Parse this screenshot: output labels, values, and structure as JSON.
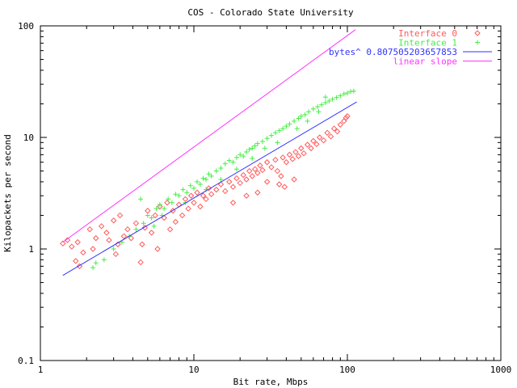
{
  "chart_data": {
    "type": "scatter",
    "title": "COS - Colorado State University",
    "xlabel": "Bit rate, Mbps",
    "ylabel": "Kilopackets per second",
    "xscale": "log",
    "yscale": "log",
    "xlim": [
      1,
      1000
    ],
    "ylim": [
      0.1,
      100
    ],
    "x_ticks": [
      1,
      10,
      100,
      1000
    ],
    "x_tick_labels": [
      "1",
      "10",
      "100",
      "1000"
    ],
    "y_ticks": [
      0.1,
      1,
      10,
      100
    ],
    "y_tick_labels": [
      "0.1",
      "1",
      "10",
      "100"
    ],
    "grid": false,
    "legend_position": "top-right",
    "series": [
      {
        "name": "Interface 0",
        "kind": "points",
        "marker": "diamond",
        "color": "#ff5a5a",
        "points": [
          [
            1.4,
            1.12
          ],
          [
            1.5,
            1.2
          ],
          [
            1.6,
            1.05
          ],
          [
            1.7,
            0.78
          ],
          [
            1.75,
            1.15
          ],
          [
            1.8,
            0.7
          ],
          [
            1.9,
            0.93
          ],
          [
            2.1,
            1.5
          ],
          [
            2.2,
            1.0
          ],
          [
            2.3,
            1.25
          ],
          [
            2.5,
            1.6
          ],
          [
            2.7,
            1.4
          ],
          [
            2.8,
            1.2
          ],
          [
            3.0,
            1.8
          ],
          [
            3.1,
            0.9
          ],
          [
            3.2,
            1.1
          ],
          [
            3.3,
            2.0
          ],
          [
            3.5,
            1.3
          ],
          [
            3.7,
            1.5
          ],
          [
            3.9,
            1.25
          ],
          [
            4.2,
            1.7
          ],
          [
            4.5,
            0.76
          ],
          [
            4.6,
            1.1
          ],
          [
            4.8,
            1.55
          ],
          [
            5.0,
            2.2
          ],
          [
            5.3,
            1.4
          ],
          [
            5.6,
            2.0
          ],
          [
            5.8,
            1.0
          ],
          [
            6.0,
            2.4
          ],
          [
            6.4,
            1.9
          ],
          [
            6.7,
            2.6
          ],
          [
            7.0,
            1.5
          ],
          [
            7.3,
            2.2
          ],
          [
            7.6,
            1.75
          ],
          [
            8.0,
            2.5
          ],
          [
            8.4,
            2.0
          ],
          [
            8.8,
            2.8
          ],
          [
            9.2,
            2.3
          ],
          [
            9.6,
            3.0
          ],
          [
            10,
            2.6
          ],
          [
            10.5,
            3.2
          ],
          [
            11,
            2.4
          ],
          [
            11.5,
            3.0
          ],
          [
            12,
            2.8
          ],
          [
            12.5,
            3.5
          ],
          [
            13,
            3.1
          ],
          [
            14,
            3.4
          ],
          [
            15,
            3.8
          ],
          [
            16,
            3.3
          ],
          [
            17,
            4.0
          ],
          [
            18,
            3.6
          ],
          [
            19,
            4.3
          ],
          [
            20,
            3.9
          ],
          [
            21,
            4.6
          ],
          [
            22,
            4.2
          ],
          [
            23,
            5.0
          ],
          [
            24,
            4.5
          ],
          [
            25,
            5.2
          ],
          [
            26,
            4.8
          ],
          [
            27,
            5.6
          ],
          [
            28,
            5.1
          ],
          [
            30,
            6.0
          ],
          [
            32,
            5.4
          ],
          [
            34,
            6.3
          ],
          [
            35,
            5.0
          ],
          [
            36,
            3.8
          ],
          [
            37,
            4.5
          ],
          [
            38,
            6.6
          ],
          [
            40,
            6.0
          ],
          [
            42,
            7.0
          ],
          [
            44,
            6.4
          ],
          [
            46,
            7.4
          ],
          [
            48,
            6.8
          ],
          [
            50,
            8.0
          ],
          [
            52,
            7.2
          ],
          [
            55,
            8.6
          ],
          [
            58,
            8.0
          ],
          [
            60,
            9.3
          ],
          [
            63,
            8.7
          ],
          [
            66,
            10.0
          ],
          [
            70,
            9.4
          ],
          [
            74,
            11.0
          ],
          [
            78,
            10.2
          ],
          [
            82,
            12.0
          ],
          [
            86,
            11.3
          ],
          [
            90,
            13.0
          ],
          [
            95,
            14.0
          ],
          [
            98,
            15.0
          ],
          [
            100,
            15.5
          ],
          [
            39,
            3.6
          ],
          [
            45,
            4.2
          ],
          [
            30,
            4.0
          ],
          [
            26,
            3.2
          ],
          [
            22,
            3.0
          ],
          [
            18,
            2.6
          ]
        ]
      },
      {
        "name": "Interface 1",
        "kind": "points",
        "marker": "plus",
        "color": "#44ee44",
        "points": [
          [
            2.2,
            0.68
          ],
          [
            2.3,
            0.75
          ],
          [
            2.6,
            0.8
          ],
          [
            3.0,
            1.0
          ],
          [
            3.4,
            1.15
          ],
          [
            3.8,
            1.3
          ],
          [
            4.2,
            1.5
          ],
          [
            4.5,
            2.8
          ],
          [
            4.7,
            1.7
          ],
          [
            5.0,
            2.0
          ],
          [
            5.3,
            1.9
          ],
          [
            5.7,
            2.3
          ],
          [
            6.0,
            2.5
          ],
          [
            6.4,
            2.3
          ],
          [
            6.8,
            2.8
          ],
          [
            7.2,
            2.6
          ],
          [
            7.6,
            3.1
          ],
          [
            8.0,
            3.0
          ],
          [
            8.5,
            3.4
          ],
          [
            9.0,
            3.2
          ],
          [
            9.5,
            3.7
          ],
          [
            10,
            3.5
          ],
          [
            10.5,
            4.0
          ],
          [
            11,
            3.8
          ],
          [
            11.5,
            4.3
          ],
          [
            12,
            4.2
          ],
          [
            12.5,
            4.7
          ],
          [
            13,
            4.5
          ],
          [
            14,
            5.0
          ],
          [
            15,
            5.3
          ],
          [
            16,
            5.8
          ],
          [
            17,
            6.2
          ],
          [
            18,
            6.0
          ],
          [
            19,
            6.6
          ],
          [
            20,
            7.0
          ],
          [
            21,
            6.8
          ],
          [
            22,
            7.4
          ],
          [
            23,
            7.8
          ],
          [
            24,
            8.0
          ],
          [
            25,
            8.4
          ],
          [
            26,
            8.8
          ],
          [
            28,
            9.2
          ],
          [
            30,
            9.8
          ],
          [
            32,
            10.4
          ],
          [
            34,
            11.0
          ],
          [
            36,
            11.5
          ],
          [
            38,
            12.0
          ],
          [
            40,
            12.6
          ],
          [
            42,
            13.2
          ],
          [
            45,
            14.0
          ],
          [
            48,
            14.8
          ],
          [
            50,
            15.5
          ],
          [
            53,
            16.0
          ],
          [
            56,
            17.0
          ],
          [
            60,
            18.0
          ],
          [
            64,
            18.8
          ],
          [
            68,
            19.6
          ],
          [
            72,
            20.5
          ],
          [
            76,
            21.2
          ],
          [
            80,
            22.0
          ],
          [
            85,
            22.8
          ],
          [
            90,
            23.6
          ],
          [
            95,
            24.5
          ],
          [
            100,
            25.0
          ],
          [
            105,
            25.8
          ],
          [
            110,
            26.0
          ],
          [
            72,
            23.0
          ],
          [
            65,
            17.0
          ],
          [
            55,
            14.0
          ],
          [
            47,
            12.0
          ],
          [
            35,
            9.0
          ],
          [
            29,
            8.0
          ],
          [
            24,
            6.5
          ],
          [
            19,
            5.2
          ],
          [
            15,
            4.2
          ],
          [
            12,
            3.4
          ],
          [
            8.8,
            2.6
          ],
          [
            6.2,
            2.0
          ],
          [
            5.5,
            1.6
          ]
        ]
      },
      {
        "name": "bytes^ 0.807505203657853",
        "kind": "line",
        "color": "#3333ff",
        "x": [
          1.4,
          115
        ],
        "y": [
          0.58,
          20.8
        ]
      },
      {
        "name": "linear slope",
        "kind": "line",
        "color": "#ff33ff",
        "x": [
          1.4,
          113
        ],
        "y": [
          1.15,
          92.5
        ]
      }
    ]
  }
}
